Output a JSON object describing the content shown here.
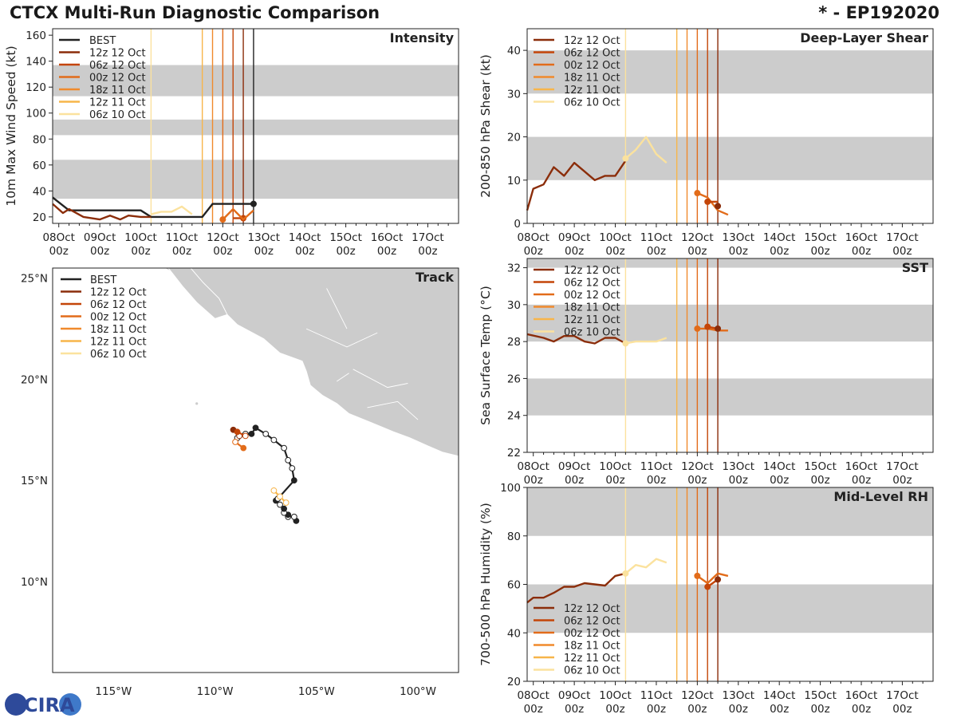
{
  "header": {
    "title": "CTCX Multi-Run Diagnostic Comparison",
    "storm": "* - EP192020"
  },
  "logo": {
    "text": "CIRA"
  },
  "colors": {
    "BEST": "#222222",
    "12z 12 Oct": "#8b2d0a",
    "06z 12 Oct": "#c44508",
    "00z 12 Oct": "#e26c1a",
    "18z 11 Oct": "#f08a2c",
    "12z 11 Oct": "#f7b54a",
    "06z 10 Oct": "#fbe29e",
    "band": "#cccccc",
    "land": "#cccccc"
  },
  "time_ticks": [
    "08Oct\n00z",
    "09Oct\n00z",
    "10Oct\n00z",
    "11Oct\n00z",
    "12Oct\n00z",
    "13Oct\n00z",
    "14Oct\n00z",
    "15Oct\n00z",
    "16Oct\n00z",
    "17Oct\n00z"
  ],
  "chart_data": [
    {
      "id": "intensity",
      "type": "line",
      "title": "Intensity",
      "ylabel": "10m Max Wind Speed (kt)",
      "ylim": [
        15,
        165
      ],
      "xlim": [
        7.85,
        17.75
      ],
      "yticks": [
        20,
        40,
        60,
        80,
        100,
        120,
        140,
        160
      ],
      "bands": [
        [
          34,
          64
        ],
        [
          83,
          95
        ],
        [
          113,
          137
        ]
      ],
      "legend": [
        "BEST",
        "12z 12 Oct",
        "06z 12 Oct",
        "00z 12 Oct",
        "18z 11 Oct",
        "12z 11 Oct",
        "06z 10 Oct"
      ],
      "vlines": [
        {
          "run": "06z 10 Oct",
          "x": 10.25
        },
        {
          "run": "12z 11 Oct",
          "x": 11.5
        },
        {
          "run": "18z 11 Oct",
          "x": 11.75
        },
        {
          "run": "00z 12 Oct",
          "x": 12.0
        },
        {
          "run": "06z 12 Oct",
          "x": 12.25
        },
        {
          "run": "12z 12 Oct",
          "x": 12.5
        },
        {
          "run": "BEST",
          "x": 12.75
        }
      ],
      "series": [
        {
          "name": "BEST",
          "x": [
            7.85,
            8.25,
            8.5,
            9.0,
            9.5,
            10.0,
            10.25,
            10.5,
            11.0,
            11.5,
            11.75,
            12.0,
            12.25,
            12.5,
            12.75
          ],
          "y": [
            35,
            25,
            25,
            25,
            25,
            25,
            20,
            20,
            20,
            20,
            30,
            30,
            30,
            30,
            30
          ],
          "dots": [
            12.75
          ]
        },
        {
          "name": "12z 12 Oct",
          "x": [
            7.85,
            8.1,
            8.25,
            8.6,
            9.0,
            9.25,
            9.5,
            9.7,
            10.0,
            10.25
          ],
          "y": [
            30,
            23,
            26,
            20,
            18,
            21,
            18,
            21,
            20,
            20
          ],
          "dots": []
        },
        {
          "name": "06z 12 Oct",
          "x": [
            12.25,
            12.5
          ],
          "y": [
            19,
            19
          ],
          "dots": [
            12.5
          ]
        },
        {
          "name": "00z 12 Oct",
          "x": [
            12.0,
            12.25,
            12.5,
            12.75
          ],
          "y": [
            18,
            26,
            18,
            25
          ],
          "dots": [
            12.0
          ]
        },
        {
          "name": "06z 10 Oct",
          "x": [
            10.25,
            10.5,
            10.75,
            11.0,
            11.25
          ],
          "y": [
            22,
            24,
            24,
            28,
            22
          ],
          "dots": []
        }
      ]
    },
    {
      "id": "shear",
      "type": "line",
      "title": "Deep-Layer Shear",
      "ylabel": "200-850 hPa Shear (kt)",
      "ylim": [
        0,
        45
      ],
      "xlim": [
        7.85,
        17.75
      ],
      "yticks": [
        0,
        10,
        20,
        30,
        40
      ],
      "bands": [
        [
          10,
          20
        ],
        [
          30,
          40
        ]
      ],
      "legend": [
        "12z 12 Oct",
        "06z 12 Oct",
        "00z 12 Oct",
        "18z 11 Oct",
        "12z 11 Oct",
        "06z 10 Oct"
      ],
      "vlines": [
        {
          "run": "06z 10 Oct",
          "x": 10.25
        },
        {
          "run": "12z 11 Oct",
          "x": 11.5
        },
        {
          "run": "18z 11 Oct",
          "x": 11.75
        },
        {
          "run": "00z 12 Oct",
          "x": 12.0
        },
        {
          "run": "06z 12 Oct",
          "x": 12.25
        },
        {
          "run": "12z 12 Oct",
          "x": 12.5
        }
      ],
      "series": [
        {
          "name": "12z 12 Oct",
          "x": [
            7.85,
            8.0,
            8.25,
            8.5,
            8.75,
            9.0,
            9.25,
            9.5,
            9.75,
            10.0,
            10.25
          ],
          "y": [
            3,
            8,
            9,
            13,
            11,
            14,
            12,
            10,
            11,
            11,
            14.5
          ],
          "dots": []
        },
        {
          "name": "06z 10 Oct",
          "x": [
            10.25,
            10.5,
            10.75,
            11.0,
            11.25
          ],
          "y": [
            15,
            17,
            20,
            16,
            14
          ],
          "dots": [
            10.25
          ]
        },
        {
          "name": "00z 12 Oct",
          "x": [
            12.0,
            12.25,
            12.5,
            12.75
          ],
          "y": [
            7,
            6,
            3,
            2
          ],
          "dots": [
            12.0
          ]
        },
        {
          "name": "06z 12 Oct",
          "x": [
            12.25,
            12.5
          ],
          "y": [
            5,
            5
          ],
          "dots": [
            12.25
          ]
        },
        {
          "name": "12z 12 Oct",
          "x": [
            12.5
          ],
          "y": [
            4
          ],
          "dots": [
            12.5
          ]
        }
      ]
    },
    {
      "id": "sst",
      "type": "line",
      "title": "SST",
      "ylabel": "Sea Surface Temp (°C)",
      "ylim": [
        22,
        32.5
      ],
      "xlim": [
        7.85,
        17.75
      ],
      "yticks": [
        22,
        24,
        26,
        28,
        30,
        32
      ],
      "bands": [
        [
          24,
          26
        ],
        [
          28,
          30
        ],
        [
          32,
          32.5
        ]
      ],
      "legend": [
        "12z 12 Oct",
        "06z 12 Oct",
        "00z 12 Oct",
        "18z 11 Oct",
        "12z 11 Oct",
        "06z 10 Oct"
      ],
      "vlines": [
        {
          "run": "06z 10 Oct",
          "x": 10.25
        },
        {
          "run": "12z 11 Oct",
          "x": 11.5
        },
        {
          "run": "18z 11 Oct",
          "x": 11.75
        },
        {
          "run": "00z 12 Oct",
          "x": 12.0
        },
        {
          "run": "06z 12 Oct",
          "x": 12.25
        },
        {
          "run": "12z 12 Oct",
          "x": 12.5
        }
      ],
      "series": [
        {
          "name": "12z 12 Oct",
          "x": [
            7.85,
            8.25,
            8.5,
            8.75,
            9.0,
            9.25,
            9.5,
            9.75,
            10.0,
            10.25
          ],
          "y": [
            28.4,
            28.2,
            28.0,
            28.3,
            28.3,
            28.0,
            27.9,
            28.2,
            28.2,
            27.9
          ],
          "dots": []
        },
        {
          "name": "06z 10 Oct",
          "x": [
            10.25,
            10.5,
            10.75,
            11.0,
            11.25
          ],
          "y": [
            27.9,
            28.0,
            28.0,
            28.0,
            28.2
          ],
          "dots": [
            10.25
          ]
        },
        {
          "name": "00z 12 Oct",
          "x": [
            12.0,
            12.25,
            12.5,
            12.75
          ],
          "y": [
            28.7,
            28.7,
            28.6,
            28.6
          ],
          "dots": [
            12.0
          ]
        },
        {
          "name": "06z 12 Oct",
          "x": [
            12.25,
            12.5
          ],
          "y": [
            28.8,
            28.7
          ],
          "dots": [
            12.25
          ]
        },
        {
          "name": "12z 12 Oct",
          "x": [
            12.5
          ],
          "y": [
            28.7
          ],
          "dots": [
            12.5
          ]
        }
      ]
    },
    {
      "id": "rh",
      "type": "line",
      "title": "Mid-Level RH",
      "ylabel": "700-500 hPa Humidity (%)",
      "ylim": [
        20,
        100
      ],
      "xlim": [
        7.85,
        17.75
      ],
      "yticks": [
        20,
        40,
        60,
        80,
        100
      ],
      "bands": [
        [
          40,
          60
        ],
        [
          80,
          100
        ]
      ],
      "legend": [
        "12z 12 Oct",
        "06z 12 Oct",
        "00z 12 Oct",
        "18z 11 Oct",
        "12z 11 Oct",
        "06z 10 Oct"
      ],
      "vlines": [
        {
          "run": "06z 10 Oct",
          "x": 10.25
        },
        {
          "run": "12z 11 Oct",
          "x": 11.5
        },
        {
          "run": "18z 11 Oct",
          "x": 11.75
        },
        {
          "run": "00z 12 Oct",
          "x": 12.0
        },
        {
          "run": "06z 12 Oct",
          "x": 12.25
        },
        {
          "run": "12z 12 Oct",
          "x": 12.5
        }
      ],
      "series": [
        {
          "name": "12z 12 Oct",
          "x": [
            7.85,
            8.0,
            8.25,
            8.5,
            8.75,
            9.0,
            9.25,
            9.5,
            9.75,
            10.0,
            10.25
          ],
          "y": [
            52.5,
            54.5,
            54.5,
            56.5,
            59,
            59,
            60.5,
            60,
            59.5,
            63.5,
            64.5
          ],
          "dots": []
        },
        {
          "name": "06z 10 Oct",
          "x": [
            10.25,
            10.5,
            10.75,
            11.0,
            11.25
          ],
          "y": [
            64.5,
            68,
            67,
            70.5,
            69
          ],
          "dots": [
            10.25
          ]
        },
        {
          "name": "00z 12 Oct",
          "x": [
            12.0,
            12.25,
            12.5,
            12.75
          ],
          "y": [
            63.5,
            60.5,
            64.5,
            63.5
          ],
          "dots": [
            12.0
          ]
        },
        {
          "name": "06z 12 Oct",
          "x": [
            12.25,
            12.5
          ],
          "y": [
            59,
            62
          ],
          "dots": [
            12.25
          ]
        },
        {
          "name": "12z 12 Oct",
          "x": [
            12.5
          ],
          "y": [
            62
          ],
          "dots": [
            12.5
          ]
        }
      ]
    },
    {
      "id": "track",
      "type": "scatter",
      "title": "Track",
      "xlim": [
        -118,
        -98
      ],
      "ylim": [
        5.5,
        25.5
      ],
      "lat_ticks": [
        "25°N",
        "20°N",
        "15°N",
        "10°N"
      ],
      "lat_values": [
        25,
        20,
        15,
        10
      ],
      "lon_ticks": [
        "115°W",
        "110°W",
        "105°W",
        "100°W"
      ],
      "lon_values": [
        -115,
        -110,
        -105,
        -100
      ],
      "legend": [
        "BEST",
        "12z 12 Oct",
        "06z 12 Oct",
        "00z 12 Oct",
        "18z 11 Oct",
        "12z 11 Oct",
        "06z 10 Oct"
      ],
      "series": [
        {
          "name": "BEST",
          "lon": [
            -106.0,
            -106.1,
            -106.4,
            -106.4,
            -106.6,
            -106.6,
            -106.8,
            -107.0,
            -106.9,
            -106.1,
            -106.2,
            -106.4,
            -106.6,
            -107.1,
            -107.5,
            -108.0,
            -108.2,
            -108.5,
            -108.9
          ],
          "lat": [
            13.0,
            13.2,
            13.2,
            13.3,
            13.4,
            13.6,
            13.8,
            14.0,
            14.1,
            15.0,
            15.6,
            16.0,
            16.6,
            17.0,
            17.3,
            17.6,
            17.3,
            17.3,
            17.1
          ],
          "filled": [
            true,
            false,
            false,
            true,
            false,
            true,
            false,
            true,
            false,
            true,
            false,
            false,
            false,
            false,
            false,
            true,
            true,
            false,
            false
          ]
        },
        {
          "name": "12z 12 Oct",
          "lon": [
            -109.1,
            -108.8
          ],
          "lat": [
            17.5,
            17.2
          ],
          "filled": [
            true,
            false
          ]
        },
        {
          "name": "00z 12 Oct",
          "lon": [
            -109.0,
            -108.6
          ],
          "lat": [
            16.9,
            16.6
          ],
          "filled": [
            false,
            true
          ]
        },
        {
          "name": "06z 12 Oct",
          "lon": [
            -108.9,
            -108.5
          ],
          "lat": [
            17.4,
            17.2
          ],
          "filled": [
            true,
            false
          ]
        },
        {
          "name": "12z 11 Oct",
          "lon": [
            -107.1,
            -106.8,
            -106.5
          ],
          "lat": [
            14.5,
            14.2,
            13.9
          ],
          "filled": [
            false,
            false,
            false
          ]
        }
      ]
    }
  ]
}
